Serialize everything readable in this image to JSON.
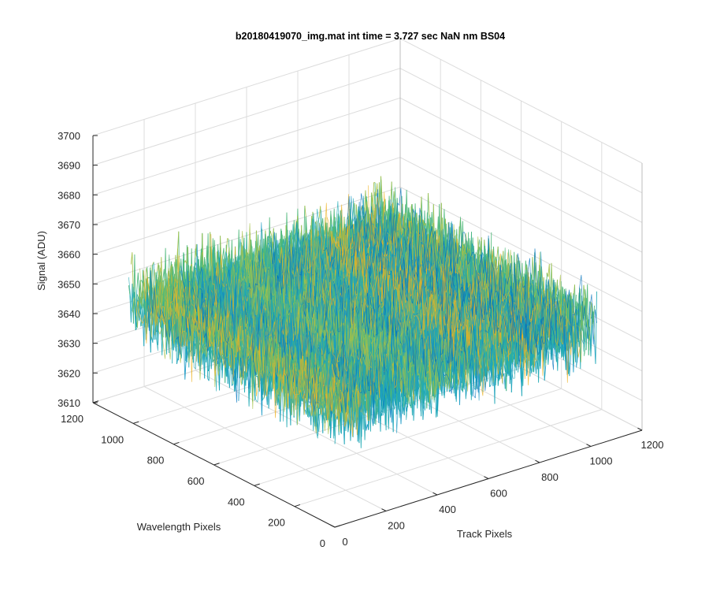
{
  "chart_data": {
    "type": "surface",
    "title": "b20180419070_img.mat int time = 3.727 sec  NaN nm BS04",
    "xlabel": "Track Pixels",
    "ylabel": "Wavelength Pixels",
    "zlabel": "Signal (ADU)",
    "xlim": [
      0,
      1200
    ],
    "ylim": [
      0,
      1200
    ],
    "zlim": [
      3610,
      3700
    ],
    "x_ticks": [
      "0",
      "200",
      "400",
      "600",
      "800",
      "1000",
      "1200"
    ],
    "y_ticks": [
      "0",
      "200",
      "400",
      "600",
      "800",
      "1000",
      "1200"
    ],
    "z_ticks": [
      "3610",
      "3620",
      "3630",
      "3640",
      "3650",
      "3660",
      "3670",
      "3680",
      "3690",
      "3700"
    ],
    "data_x_range": [
      1,
      1024
    ],
    "data_y_range": [
      1,
      1024
    ],
    "signal_mean": 3650,
    "signal_range": [
      3620,
      3690
    ],
    "colormap": [
      "#0072bd",
      "#1a9ac6",
      "#21aab4",
      "#4fb87a",
      "#a6c24a",
      "#edb120"
    ],
    "grid": true,
    "view": "3-D perspective surface, MATLAB default"
  }
}
